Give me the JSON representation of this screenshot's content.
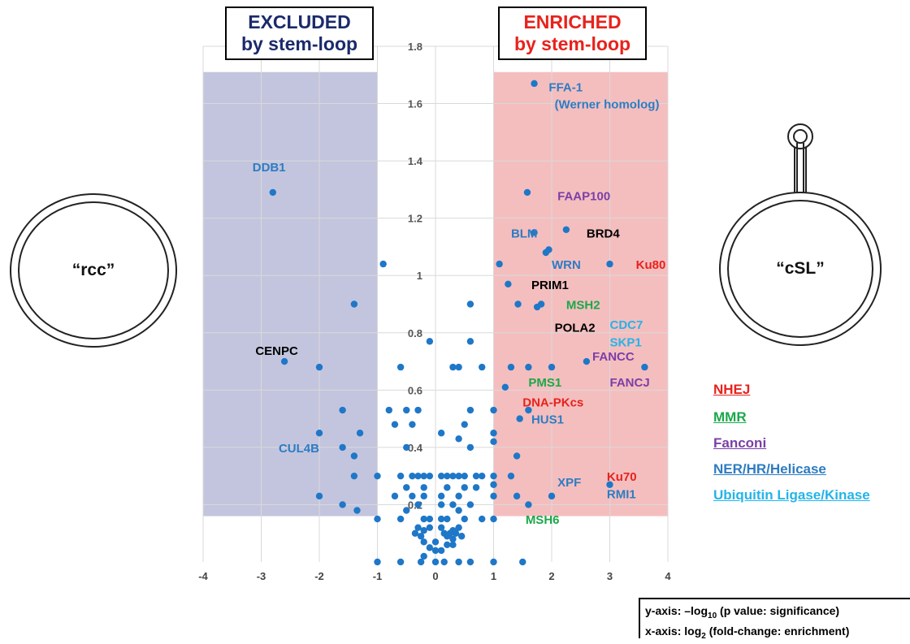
{
  "chart_data": {
    "type": "scatter",
    "xlim": [
      -4,
      4
    ],
    "ylim": [
      0,
      1.8
    ],
    "xticks": [
      "-4",
      "-3",
      "-2",
      "-1",
      "0",
      "1",
      "2",
      "3",
      "4"
    ],
    "yticks": [
      "0.2",
      "0.4",
      "0.6",
      "0.8",
      "1",
      "1.2",
      "1.4",
      "1.6",
      "1.8"
    ],
    "grid": true,
    "regions": [
      {
        "name": "excluded",
        "x": [
          -4,
          -1
        ],
        "y": [
          0.16,
          1.71
        ],
        "color": "#b9bbd8"
      },
      {
        "name": "enriched",
        "x": [
          1,
          4
        ],
        "y": [
          0.16,
          1.71
        ],
        "color": "#f2b3b4"
      }
    ],
    "points": [
      [
        1.7,
        1.67
      ],
      [
        -2.8,
        1.29
      ],
      [
        1.58,
        1.29
      ],
      [
        2.25,
        1.16
      ],
      [
        1.7,
        1.15
      ],
      [
        1.95,
        1.09
      ],
      [
        1.9,
        1.08
      ],
      [
        -0.9,
        1.04
      ],
      [
        1.1,
        1.04
      ],
      [
        3.0,
        1.04
      ],
      [
        1.25,
        0.97
      ],
      [
        -1.4,
        0.9
      ],
      [
        0.6,
        0.9
      ],
      [
        1.42,
        0.9
      ],
      [
        1.75,
        0.89
      ],
      [
        1.82,
        0.9
      ],
      [
        -0.1,
        0.77
      ],
      [
        0.6,
        0.77
      ],
      [
        -2.6,
        0.7
      ],
      [
        -2.0,
        0.68
      ],
      [
        -0.6,
        0.68
      ],
      [
        0.3,
        0.68
      ],
      [
        0.4,
        0.68
      ],
      [
        0.8,
        0.68
      ],
      [
        1.3,
        0.68
      ],
      [
        1.6,
        0.68
      ],
      [
        2.0,
        0.68
      ],
      [
        2.6,
        0.7
      ],
      [
        3.6,
        0.68
      ],
      [
        1.2,
        0.61
      ],
      [
        -1.6,
        0.53
      ],
      [
        -0.8,
        0.53
      ],
      [
        -0.5,
        0.53
      ],
      [
        -0.3,
        0.53
      ],
      [
        0.6,
        0.53
      ],
      [
        1.0,
        0.53
      ],
      [
        1.6,
        0.53
      ],
      [
        1.45,
        0.5
      ],
      [
        -0.7,
        0.48
      ],
      [
        -0.4,
        0.48
      ],
      [
        0.5,
        0.48
      ],
      [
        1.0,
        0.45
      ],
      [
        -2.0,
        0.45
      ],
      [
        -1.3,
        0.45
      ],
      [
        0.1,
        0.45
      ],
      [
        0.4,
        0.43
      ],
      [
        1.0,
        0.42
      ],
      [
        -1.6,
        0.4
      ],
      [
        -0.5,
        0.4
      ],
      [
        0.6,
        0.4
      ],
      [
        1.4,
        0.37
      ],
      [
        -1.4,
        0.37
      ],
      [
        -1.4,
        0.3
      ],
      [
        -1.0,
        0.3
      ],
      [
        -0.6,
        0.3
      ],
      [
        -0.4,
        0.3
      ],
      [
        -0.3,
        0.3
      ],
      [
        -0.2,
        0.3
      ],
      [
        -0.1,
        0.3
      ],
      [
        0.1,
        0.3
      ],
      [
        0.2,
        0.3
      ],
      [
        0.3,
        0.3
      ],
      [
        0.4,
        0.3
      ],
      [
        0.5,
        0.3
      ],
      [
        0.7,
        0.3
      ],
      [
        0.8,
        0.3
      ],
      [
        1.0,
        0.3
      ],
      [
        1.3,
        0.3
      ],
      [
        -0.5,
        0.26
      ],
      [
        -0.2,
        0.26
      ],
      [
        0.2,
        0.26
      ],
      [
        0.5,
        0.26
      ],
      [
        0.7,
        0.26
      ],
      [
        1.0,
        0.27
      ],
      [
        3.0,
        0.27
      ],
      [
        -2.0,
        0.23
      ],
      [
        -0.7,
        0.23
      ],
      [
        -0.4,
        0.23
      ],
      [
        -0.2,
        0.23
      ],
      [
        0.1,
        0.23
      ],
      [
        0.4,
        0.23
      ],
      [
        1.0,
        0.23
      ],
      [
        1.4,
        0.23
      ],
      [
        2.0,
        0.23
      ],
      [
        -1.6,
        0.2
      ],
      [
        -0.3,
        0.2
      ],
      [
        0.1,
        0.2
      ],
      [
        0.3,
        0.2
      ],
      [
        0.6,
        0.2
      ],
      [
        1.6,
        0.2
      ],
      [
        -1.35,
        0.18
      ],
      [
        -0.5,
        0.18
      ],
      [
        0.4,
        0.18
      ],
      [
        -1.0,
        0.15
      ],
      [
        -0.6,
        0.15
      ],
      [
        -0.2,
        0.15
      ],
      [
        -0.1,
        0.15
      ],
      [
        0.1,
        0.15
      ],
      [
        0.2,
        0.15
      ],
      [
        0.5,
        0.15
      ],
      [
        0.8,
        0.15
      ],
      [
        1.0,
        0.15
      ],
      [
        -0.3,
        0.12
      ],
      [
        -0.1,
        0.12
      ],
      [
        0.1,
        0.12
      ],
      [
        0.4,
        0.12
      ],
      [
        -0.2,
        0.11
      ],
      [
        0.3,
        0.11
      ],
      [
        -0.35,
        0.1
      ],
      [
        0.15,
        0.1
      ],
      [
        0.25,
        0.1
      ],
      [
        0.35,
        0.1
      ],
      [
        -0.25,
        0.09
      ],
      [
        0.2,
        0.09
      ],
      [
        0.45,
        0.09
      ],
      [
        0.3,
        0.08
      ],
      [
        -0.2,
        0.07
      ],
      [
        0.0,
        0.07
      ],
      [
        0.2,
        0.06
      ],
      [
        0.3,
        0.06
      ],
      [
        -0.1,
        0.05
      ],
      [
        0.0,
        0.04
      ],
      [
        0.1,
        0.04
      ],
      [
        -0.2,
        0.02
      ],
      [
        -1.0,
        0.0
      ],
      [
        -0.6,
        0.0
      ],
      [
        -0.25,
        0.0
      ],
      [
        0.0,
        0.0
      ],
      [
        0.15,
        0.0
      ],
      [
        0.4,
        0.0
      ],
      [
        0.6,
        0.0
      ],
      [
        1.0,
        0.0
      ],
      [
        1.5,
        0.0
      ]
    ],
    "annotations": [
      {
        "text": "FFA-1",
        "x": 1.95,
        "y": 1.66,
        "color": "#2d7cc2"
      },
      {
        "text": "(Werner homolog)",
        "x": 2.05,
        "y": 1.6,
        "color": "#2d7cc2"
      },
      {
        "text": "DDB1",
        "x": -3.15,
        "y": 1.38,
        "color": "#2d7cc2"
      },
      {
        "text": "FAAP100",
        "x": 2.1,
        "y": 1.28,
        "color": "#7b3fa6"
      },
      {
        "text": "BLM",
        "x": 1.3,
        "y": 1.15,
        "color": "#2d7cc2"
      },
      {
        "text": "BRD4",
        "x": 2.6,
        "y": 1.15,
        "color": "#000000"
      },
      {
        "text": "WRN",
        "x": 2.0,
        "y": 1.04,
        "color": "#2d7cc2"
      },
      {
        "text": "Ku80",
        "x": 3.45,
        "y": 1.04,
        "color": "#e8221c"
      },
      {
        "text": "PRIM1",
        "x": 1.65,
        "y": 0.97,
        "color": "#000000"
      },
      {
        "text": "MSH2",
        "x": 2.25,
        "y": 0.9,
        "color": "#1aa84a"
      },
      {
        "text": "POLA2",
        "x": 2.05,
        "y": 0.82,
        "color": "#000000"
      },
      {
        "text": "CDC7",
        "x": 3.0,
        "y": 0.83,
        "color": "#23b4e8"
      },
      {
        "text": "SKP1",
        "x": 3.0,
        "y": 0.77,
        "color": "#23b4e8"
      },
      {
        "text": "CENPC",
        "x": -3.1,
        "y": 0.74,
        "color": "#000000"
      },
      {
        "text": "FANCC",
        "x": 2.7,
        "y": 0.72,
        "color": "#7b3fa6"
      },
      {
        "text": "FANCJ",
        "x": 3.0,
        "y": 0.63,
        "color": "#7b3fa6"
      },
      {
        "text": "PMS1",
        "x": 1.6,
        "y": 0.63,
        "color": "#1aa84a"
      },
      {
        "text": "DNA-PKcs",
        "x": 1.5,
        "y": 0.56,
        "color": "#e8221c"
      },
      {
        "text": "HUS1",
        "x": 1.65,
        "y": 0.5,
        "color": "#2d7cc2"
      },
      {
        "text": "CUL4B",
        "x": -2.7,
        "y": 0.4,
        "color": "#2d7cc2"
      },
      {
        "text": "XPF",
        "x": 2.1,
        "y": 0.28,
        "color": "#2d7cc2"
      },
      {
        "text": "Ku70",
        "x": 2.95,
        "y": 0.3,
        "color": "#e8221c"
      },
      {
        "text": "RMI1",
        "x": 2.95,
        "y": 0.24,
        "color": "#2d7cc2"
      },
      {
        "text": "MSH6",
        "x": 1.55,
        "y": 0.15,
        "color": "#1aa84a"
      }
    ]
  },
  "excluded_box": {
    "line1": "EXCLUDED",
    "line2": "by stem-loop"
  },
  "enriched_box": {
    "line1": "ENRICHED",
    "line2": "by stem-loop"
  },
  "rcc_label": "“rcc”",
  "csl_label": "“cSL”",
  "legend": [
    {
      "text": "NHEJ",
      "color": "#e8221c"
    },
    {
      "text": "MMR",
      "color": "#1aa84a"
    },
    {
      "text": "Fanconi",
      "color": "#7b3fa6"
    },
    {
      "text": "NER/HR/Helicase",
      "color": "#2d7cc2"
    },
    {
      "text": "Ubiquitin Ligase/Kinase",
      "color": "#23b4e8"
    }
  ],
  "axis_note": {
    "y_prefix": "y-axis: –log",
    "y_sub": "10",
    "y_suffix": " (p value: significance)",
    "x_prefix": "x-axis: log",
    "x_sub": "2",
    "x_suffix": " (fold-change: enrichment)"
  }
}
